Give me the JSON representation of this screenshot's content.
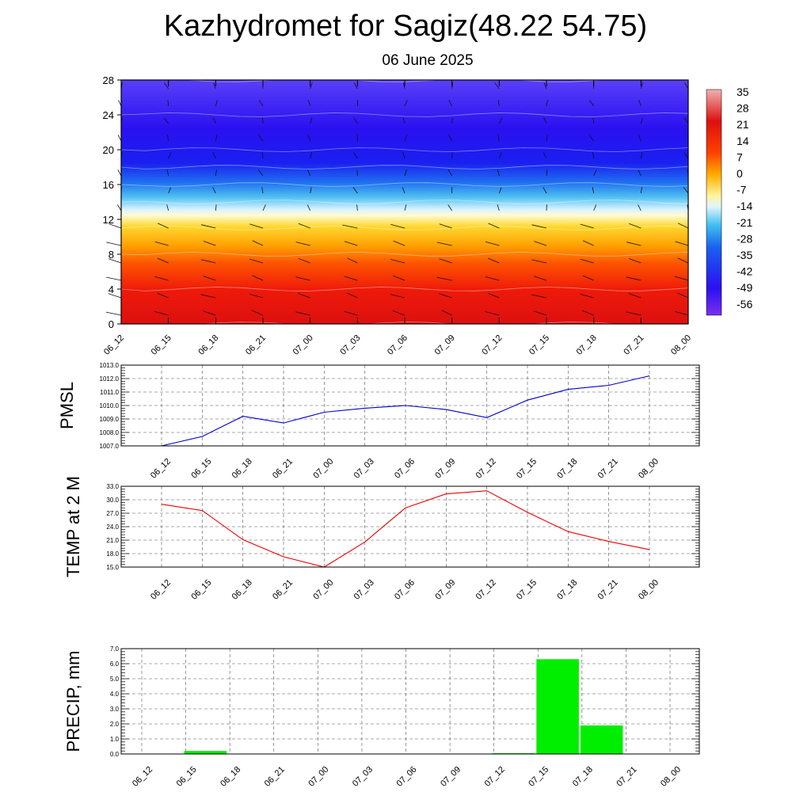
{
  "header": {
    "title": "Kazhydromet for Sagiz(48.22 54.75)",
    "subtitle": "06 June 2025"
  },
  "chart_data": [
    {
      "type": "heatmap",
      "x_categories": [
        "06_12",
        "06_15",
        "06_18",
        "06_21",
        "07_00",
        "07_03",
        "07_06",
        "07_09",
        "07_12",
        "07_15",
        "07_18",
        "07_21",
        "08_00"
      ],
      "y_ticks": [
        0,
        4,
        8,
        12,
        16,
        20,
        24,
        28
      ],
      "ylim": [
        0,
        28
      ],
      "colorbar_ticks": [
        35,
        28,
        21,
        14,
        7,
        0,
        -7,
        -14,
        -21,
        -28,
        -35,
        -42,
        -49,
        -56
      ],
      "profile": [
        {
          "level": 0,
          "value": 30
        },
        {
          "level": 4,
          "value": 22
        },
        {
          "level": 8,
          "value": 10
        },
        {
          "level": 11,
          "value": 2
        },
        {
          "level": 12.5,
          "value": -10
        },
        {
          "level": 14,
          "value": -20
        },
        {
          "level": 16,
          "value": -32
        },
        {
          "level": 18,
          "value": -44
        },
        {
          "level": 20,
          "value": -52
        },
        {
          "level": 24,
          "value": -56
        },
        {
          "level": 28,
          "value": -50
        }
      ],
      "colors": {
        "warm": "#e41a1c",
        "cold": "#2a1bf0"
      }
    },
    {
      "type": "line",
      "ylabel": "PMSL",
      "x_categories": [
        "06_12",
        "06_15",
        "06_18",
        "06_21",
        "07_00",
        "07_03",
        "07_06",
        "07_09",
        "07_12",
        "07_15",
        "07_18",
        "07_21",
        "08_00"
      ],
      "values": [
        1007.0,
        1007.7,
        1009.2,
        1008.7,
        1009.5,
        1009.8,
        1010.0,
        1009.7,
        1009.1,
        1010.4,
        1011.2,
        1011.5,
        1012.2
      ],
      "ylim": [
        1007,
        1013
      ],
      "y_ticks": [
        "1007.0",
        "1008.0",
        "1009.0",
        "1010.0",
        "1011.0",
        "1012.0",
        "1013.0"
      ],
      "color": "#0000cc"
    },
    {
      "type": "line",
      "ylabel": "TEMP at 2 M",
      "x_categories": [
        "06_12",
        "06_15",
        "06_18",
        "06_21",
        "07_00",
        "07_03",
        "07_06",
        "07_09",
        "07_12",
        "07_15",
        "07_18",
        "07_21",
        "08_00"
      ],
      "values": [
        29.0,
        27.6,
        21.1,
        17.3,
        15.0,
        20.6,
        28.2,
        31.3,
        32.0,
        27.2,
        22.9,
        20.7,
        18.9
      ],
      "ylim": [
        15,
        33
      ],
      "y_ticks": [
        "15.0",
        "18.0",
        "21.0",
        "24.0",
        "27.0",
        "30.0",
        "33.0"
      ],
      "color": "#ee0000"
    },
    {
      "type": "bar",
      "ylabel": "PRECIP, mm",
      "x_categories": [
        "06_12",
        "06_15",
        "06_18",
        "06_21",
        "07_00",
        "07_03",
        "07_06",
        "07_09",
        "07_12",
        "07_15",
        "07_18",
        "07_21",
        "08_00"
      ],
      "values": [
        0,
        0.2,
        0,
        0,
        0,
        0,
        0,
        0,
        0.05,
        6.3,
        1.9,
        0,
        0
      ],
      "ylim": [
        0,
        7
      ],
      "y_ticks": [
        "0.0",
        "1.0",
        "2.0",
        "3.0",
        "4.0",
        "5.0",
        "6.0",
        "7.0"
      ],
      "color": "#00ee00"
    }
  ]
}
